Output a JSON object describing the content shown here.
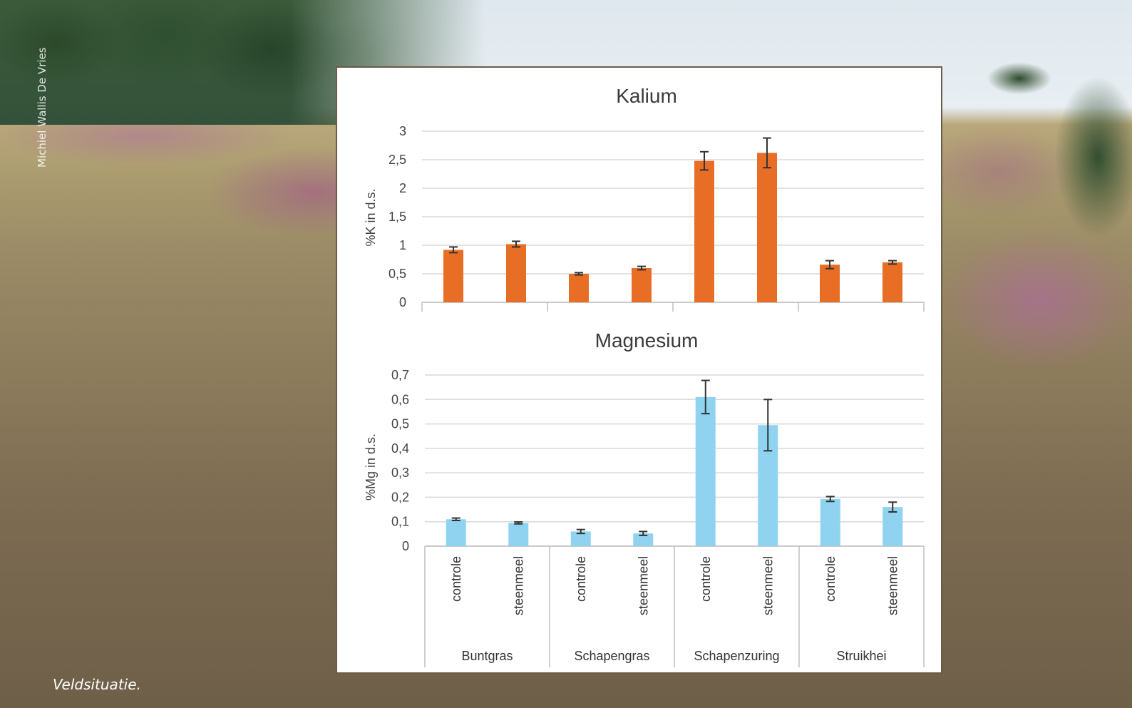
{
  "photo_credit": "Michiel Wallis De Vries",
  "caption": "Veldsituatie.",
  "chart_data": [
    {
      "type": "bar",
      "title": "Kalium",
      "ylabel": "%K in d.s.",
      "ylim": [
        0,
        3
      ],
      "yticks": [
        "0",
        "0,5",
        "1",
        "1,5",
        "2",
        "2,5",
        "3"
      ],
      "ytick_values": [
        0,
        0.5,
        1,
        1.5,
        2,
        2.5,
        3
      ],
      "groups": [
        "Buntgras",
        "Schapengras",
        "Schapenzuring",
        "Struikhei"
      ],
      "categories": [
        "controle",
        "steenmeel",
        "controle",
        "steenmeel",
        "controle",
        "steenmeel",
        "controle",
        "steenmeel"
      ],
      "values": [
        0.92,
        1.02,
        0.5,
        0.6,
        2.48,
        2.62,
        0.66,
        0.7
      ],
      "errors": [
        0.05,
        0.05,
        0.02,
        0.03,
        0.16,
        0.26,
        0.07,
        0.03
      ],
      "color": "#E86E26",
      "grid": true
    },
    {
      "type": "bar",
      "title": "Magnesium",
      "ylabel": "%Mg in d.s.",
      "ylim": [
        0,
        0.7
      ],
      "yticks": [
        "0",
        "0,1",
        "0,2",
        "0,3",
        "0,4",
        "0,5",
        "0,6",
        "0,7"
      ],
      "ytick_values": [
        0,
        0.1,
        0.2,
        0.3,
        0.4,
        0.5,
        0.6,
        0.7
      ],
      "groups": [
        "Buntgras",
        "Schapengras",
        "Schapenzuring",
        "Struikhei"
      ],
      "categories": [
        "controle",
        "steenmeel",
        "controle",
        "steenmeel",
        "controle",
        "steenmeel",
        "controle",
        "steenmeel"
      ],
      "values": [
        0.11,
        0.095,
        0.06,
        0.052,
        0.61,
        0.495,
        0.193,
        0.16
      ],
      "errors": [
        0.005,
        0.004,
        0.008,
        0.008,
        0.068,
        0.105,
        0.01,
        0.02
      ],
      "color": "#8FD3F0",
      "grid": true
    }
  ]
}
